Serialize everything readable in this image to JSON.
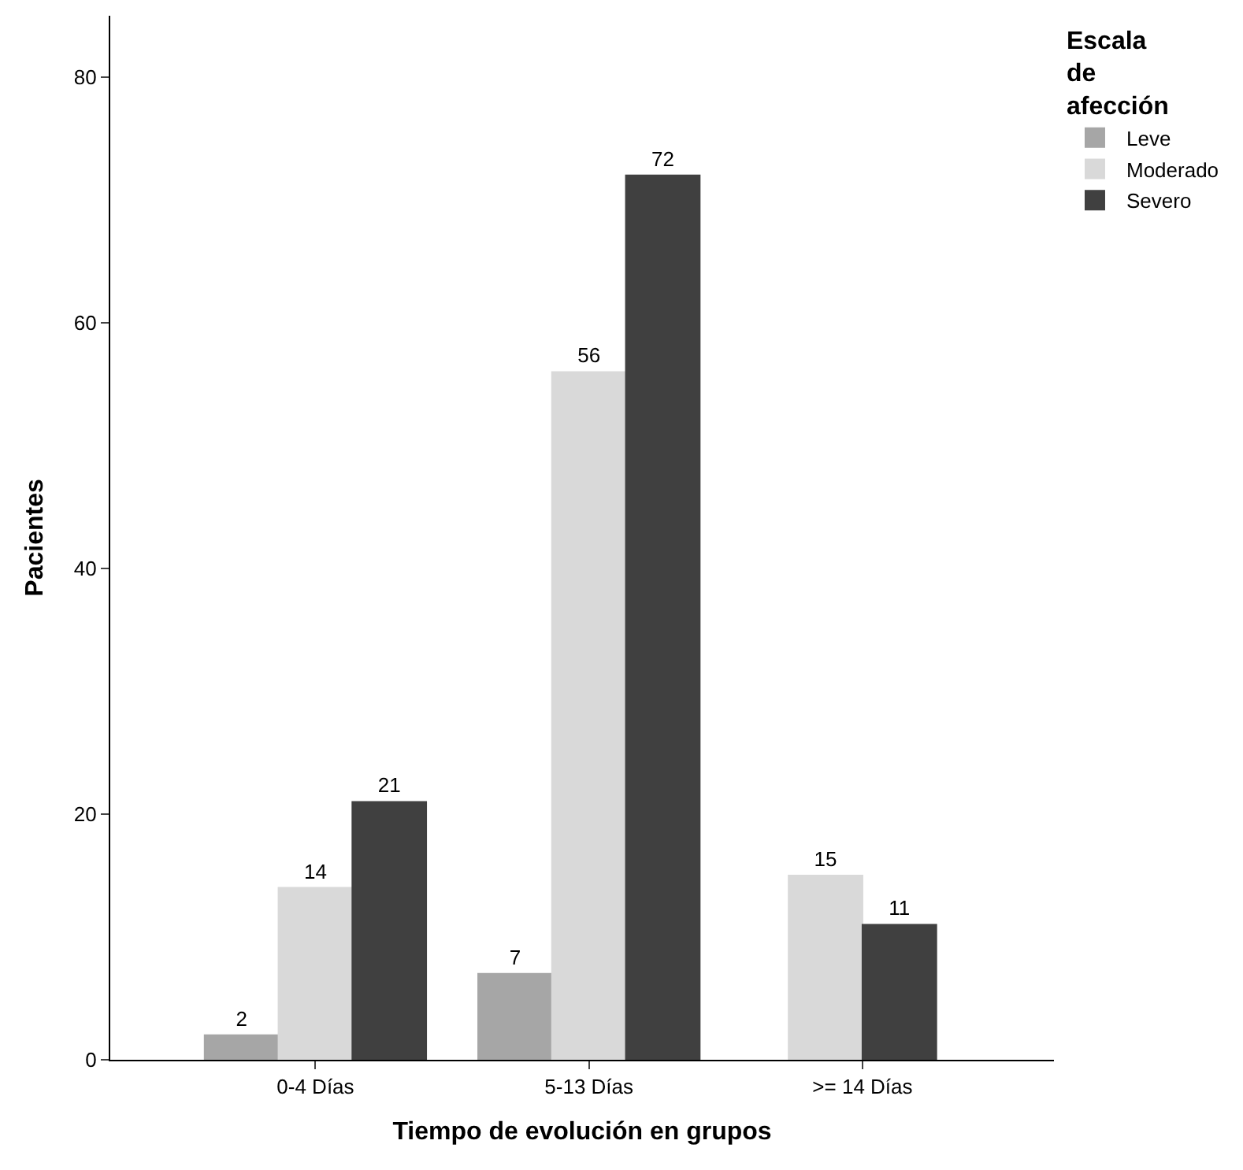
{
  "chart_data": {
    "type": "bar",
    "xlabel": "Tiempo de evolución en grupos",
    "ylabel": "Pacientes",
    "legend_title": "Escala de afección",
    "legend": "top right",
    "categories": [
      "0-4 Días",
      "5-13 Días",
      ">= 14 Días"
    ],
    "series": [
      {
        "name": "Leve",
        "color": "#a6a6a6",
        "values": [
          2,
          7,
          null
        ]
      },
      {
        "name": "Moderado",
        "color": "#d9d9d9",
        "values": [
          14,
          56,
          15
        ]
      },
      {
        "name": "Severo",
        "color": "#404040",
        "values": [
          21,
          72,
          11
        ]
      }
    ],
    "ylim": [
      0,
      85
    ],
    "yticks": [
      0,
      20,
      40,
      60,
      80
    ],
    "data_labels": true
  }
}
